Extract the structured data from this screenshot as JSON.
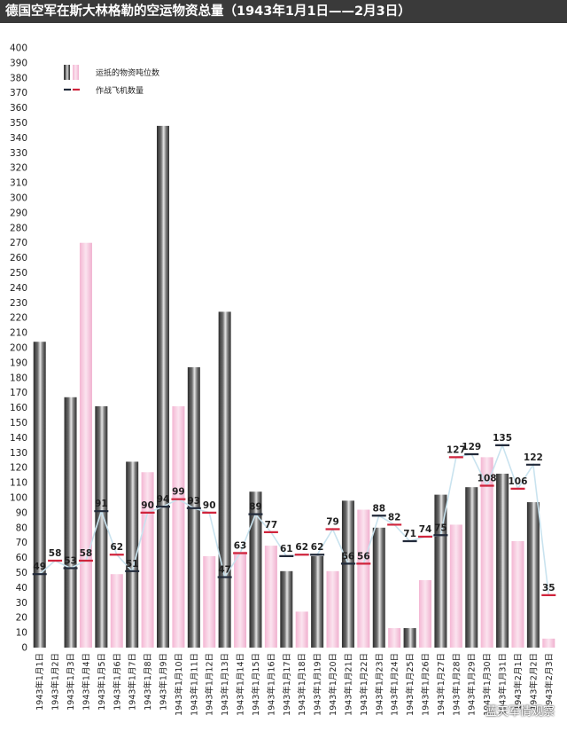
{
  "title": "德国空军在斯大林格勒的空运物资总量（1943年1月1日——2月3日）",
  "watermark": "蓝天军情观察",
  "colors": {
    "supply_bar": "#4a4a4a",
    "supply_bar_light": "#d8d8d8",
    "aircraft_bar": "#f2bcd8",
    "line": "#c9e3ef",
    "marker_red": "#d0243c",
    "marker_dark": "#222a3a"
  },
  "chart_data": {
    "type": "bar",
    "title": "德国空军在斯大林格勒的空运物资总量（1943年1月1日——2月3日）",
    "ylim": [
      0,
      400
    ],
    "y_ticks": [
      0,
      10,
      20,
      30,
      40,
      50,
      60,
      70,
      80,
      90,
      100,
      110,
      120,
      130,
      140,
      150,
      160,
      170,
      180,
      190,
      200,
      210,
      220,
      230,
      240,
      250,
      260,
      270,
      280,
      290,
      300,
      310,
      320,
      330,
      340,
      350,
      360,
      370,
      380,
      390,
      400
    ],
    "grid": false,
    "legend_position": "top-left",
    "legend": [
      "运抵的物资吨位数",
      "作战飞机数量"
    ],
    "categories": [
      "1943年1月1日",
      "1943年1月2日",
      "1943年1月3日",
      "1943年1月4日",
      "1943年1月5日",
      "1943年1月6日",
      "1943年1月7日",
      "1943年1月8日",
      "1943年1月9日",
      "1943年1月10日",
      "1943年1月11日",
      "1943年1月12日",
      "1943年1月13日",
      "1943年1月14日",
      "1943年1月15日",
      "1943年1月16日",
      "1943年1月17日",
      "1943年1月18日",
      "1943年1月19日",
      "1943年1月20日",
      "1943年1月21日",
      "1943年1月22日",
      "1943年1月23日",
      "1943年1月24日",
      "1943年1月25日",
      "1943年1月26日",
      "1943年1月27日",
      "1943年1月28日",
      "1943年1月29日",
      "1943年1月30日",
      "1943年1月31日",
      "1943年2月1日",
      "1943年2月2日",
      "1943年2月3日"
    ],
    "series": [
      {
        "name": "运抵的物资吨位数",
        "style": "supply",
        "values": [
          204,
          0,
          167,
          0,
          161,
          0,
          124,
          0,
          348,
          0,
          187,
          0,
          224,
          0,
          104,
          0,
          51,
          0,
          61,
          0,
          98,
          0,
          80,
          0,
          13,
          0,
          102,
          0,
          107,
          0,
          116,
          0,
          97,
          0
        ]
      },
      {
        "style": "aircraft",
        "values": [
          0,
          0,
          0,
          270,
          0,
          49,
          0,
          117,
          0,
          161,
          0,
          61,
          0,
          64,
          0,
          68,
          0,
          24,
          0,
          51,
          0,
          92,
          0,
          13,
          0,
          45,
          0,
          82,
          0,
          127,
          0,
          71,
          0,
          6
        ]
      },
      {
        "name": "作战飞机数量",
        "type": "line",
        "values": [
          49,
          58,
          53,
          58,
          91,
          62,
          51,
          90,
          94,
          99,
          93,
          90,
          47,
          63,
          89,
          77,
          61,
          62,
          62,
          79,
          56,
          56,
          88,
          82,
          71,
          74,
          75,
          127,
          129,
          108,
          135,
          106,
          122,
          35
        ],
        "labels": [
          "49",
          "58",
          "53",
          "58",
          "91",
          "62",
          "51",
          "90",
          "94",
          "99",
          "93",
          "90",
          "47",
          "63",
          "89",
          "77",
          "61",
          "62",
          "62",
          "79",
          "56",
          "56",
          "88",
          "82",
          "71",
          "74",
          "75",
          "127",
          "129",
          "108",
          "135",
          "106",
          "122",
          "35"
        ],
        "marker_colors": [
          "dark",
          "red",
          "dark",
          "red",
          "dark",
          "red",
          "dark",
          "red",
          "dark",
          "red",
          "dark",
          "red",
          "dark",
          "red",
          "dark",
          "red",
          "dark",
          "red",
          "dark",
          "red",
          "dark",
          "red",
          "dark",
          "red",
          "dark",
          "red",
          "dark",
          "red",
          "dark",
          "red",
          "dark",
          "red",
          "dark",
          "red"
        ]
      }
    ]
  }
}
